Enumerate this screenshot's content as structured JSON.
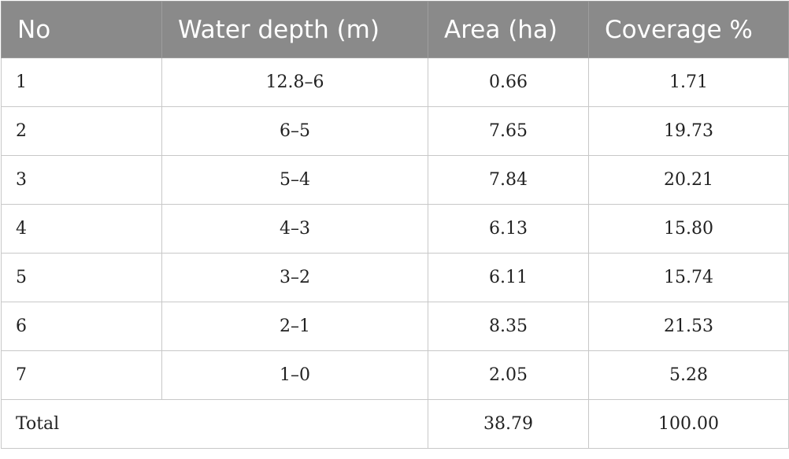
{
  "table": {
    "headers": [
      "No",
      "Water depth (m)",
      "Area (ha)",
      "Coverage %"
    ],
    "rows": [
      {
        "no": "1",
        "depth": "12.8–6",
        "area": "0.66",
        "coverage": "1.71"
      },
      {
        "no": "2",
        "depth": "6–5",
        "area": "7.65",
        "coverage": "19.73"
      },
      {
        "no": "3",
        "depth": "5–4",
        "area": "7.84",
        "coverage": "20.21"
      },
      {
        "no": "4",
        "depth": "4–3",
        "area": "6.13",
        "coverage": "15.80"
      },
      {
        "no": "5",
        "depth": "3–2",
        "area": "6.11",
        "coverage": "15.74"
      },
      {
        "no": "6",
        "depth": "2–1",
        "area": "8.35",
        "coverage": "21.53"
      },
      {
        "no": "7",
        "depth": "1–0",
        "area": "2.05",
        "coverage": "5.28"
      }
    ],
    "total": {
      "label": "Total",
      "area": "38.79",
      "coverage": "100.00"
    }
  }
}
